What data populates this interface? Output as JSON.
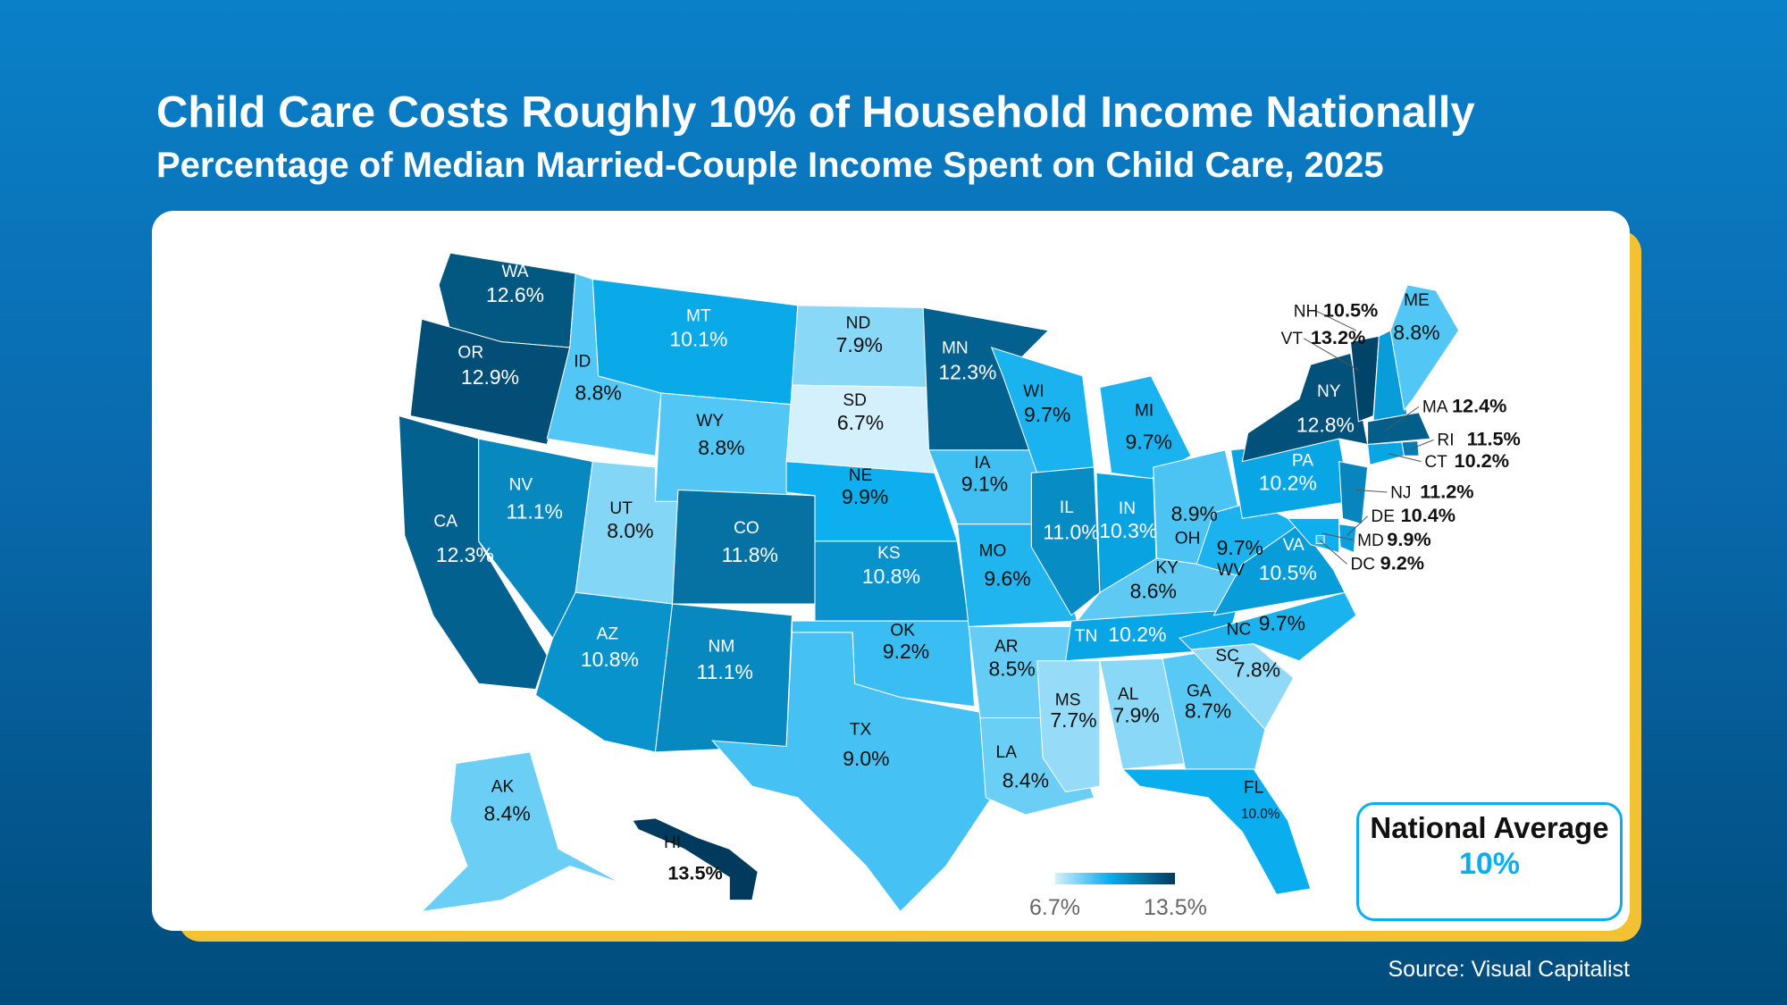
{
  "header": {
    "title": "Child Care Costs Roughly 10% of Household Income Nationally",
    "subtitle": "Percentage of Median Married-Couple Income Spent on Child Care, 2025"
  },
  "national_average": {
    "label": "National Average",
    "value": "10%"
  },
  "source": "Source: Visual Capitalist",
  "colors": {
    "low": "#d4f0fc",
    "mid": "#0aaeef",
    "high": "#003a5d",
    "accent": "#0aaeef",
    "frame": "#f2c232"
  },
  "chart_data": {
    "type": "choropleth",
    "title": "Child Care Costs Roughly 10% of Household Income Nationally",
    "subtitle": "Percentage of Median Married-Couple Income Spent on Child Care, 2025",
    "legend": {
      "min": "6.7%",
      "max": "13.5%",
      "placement": "bottom-center"
    },
    "states": [
      {
        "abbr": "WA",
        "value": 12.6,
        "label": "12.6%"
      },
      {
        "abbr": "OR",
        "value": 12.9,
        "label": "12.9%"
      },
      {
        "abbr": "CA",
        "value": 12.3,
        "label": "12.3%"
      },
      {
        "abbr": "ID",
        "value": 8.8,
        "label": "8.8%"
      },
      {
        "abbr": "NV",
        "value": 11.1,
        "label": "11.1%"
      },
      {
        "abbr": "MT",
        "value": 10.1,
        "label": "10.1%"
      },
      {
        "abbr": "WY",
        "value": 8.8,
        "label": "8.8%"
      },
      {
        "abbr": "UT",
        "value": 8.0,
        "label": "8.0%"
      },
      {
        "abbr": "AZ",
        "value": 10.8,
        "label": "10.8%"
      },
      {
        "abbr": "CO",
        "value": 11.8,
        "label": "11.8%"
      },
      {
        "abbr": "NM",
        "value": 11.1,
        "label": "11.1%"
      },
      {
        "abbr": "ND",
        "value": 7.9,
        "label": "7.9%"
      },
      {
        "abbr": "SD",
        "value": 6.7,
        "label": "6.7%"
      },
      {
        "abbr": "NE",
        "value": 9.9,
        "label": "9.9%"
      },
      {
        "abbr": "KS",
        "value": 10.8,
        "label": "10.8%"
      },
      {
        "abbr": "OK",
        "value": 9.2,
        "label": "9.2%"
      },
      {
        "abbr": "TX",
        "value": 9.0,
        "label": "9.0%"
      },
      {
        "abbr": "MN",
        "value": 12.3,
        "label": "12.3%"
      },
      {
        "abbr": "IA",
        "value": 9.1,
        "label": "9.1%"
      },
      {
        "abbr": "MO",
        "value": 9.6,
        "label": "9.6%"
      },
      {
        "abbr": "AR",
        "value": 8.5,
        "label": "8.5%"
      },
      {
        "abbr": "LA",
        "value": 8.4,
        "label": "8.4%"
      },
      {
        "abbr": "WI",
        "value": 9.7,
        "label": "9.7%"
      },
      {
        "abbr": "IL",
        "value": 11.0,
        "label": "11.0%"
      },
      {
        "abbr": "MI",
        "value": 9.7,
        "label": "9.7%"
      },
      {
        "abbr": "IN",
        "value": 10.3,
        "label": "10.3%"
      },
      {
        "abbr": "OH",
        "value": 8.9,
        "label": "8.9%"
      },
      {
        "abbr": "KY",
        "value": 8.6,
        "label": "8.6%"
      },
      {
        "abbr": "TN",
        "value": 10.2,
        "label": "10.2%"
      },
      {
        "abbr": "MS",
        "value": 7.7,
        "label": "7.7%"
      },
      {
        "abbr": "AL",
        "value": 7.9,
        "label": "7.9%"
      },
      {
        "abbr": "GA",
        "value": 8.7,
        "label": "8.7%"
      },
      {
        "abbr": "FL",
        "value": 10.0,
        "label": "10.0%"
      },
      {
        "abbr": "SC",
        "value": 7.8,
        "label": "7.8%"
      },
      {
        "abbr": "NC",
        "value": 9.7,
        "label": "9.7%"
      },
      {
        "abbr": "VA",
        "value": 10.5,
        "label": "10.5%"
      },
      {
        "abbr": "WV",
        "value": 9.7,
        "label": "9.7%"
      },
      {
        "abbr": "PA",
        "value": 10.2,
        "label": "10.2%"
      },
      {
        "abbr": "NY",
        "value": 12.8,
        "label": "12.8%"
      },
      {
        "abbr": "VT",
        "value": 13.2,
        "label": "13.2%"
      },
      {
        "abbr": "NH",
        "value": 10.5,
        "label": "10.5%"
      },
      {
        "abbr": "ME",
        "value": 8.8,
        "label": "8.8%"
      },
      {
        "abbr": "MA",
        "value": 12.4,
        "label": "12.4%"
      },
      {
        "abbr": "RI",
        "value": 11.5,
        "label": "11.5%"
      },
      {
        "abbr": "CT",
        "value": 10.2,
        "label": "10.2%"
      },
      {
        "abbr": "NJ",
        "value": 11.2,
        "label": "11.2%"
      },
      {
        "abbr": "DE",
        "value": 10.4,
        "label": "10.4%"
      },
      {
        "abbr": "MD",
        "value": 9.9,
        "label": "9.9%"
      },
      {
        "abbr": "DC",
        "value": 9.2,
        "label": "9.2%"
      },
      {
        "abbr": "AK",
        "value": 8.4,
        "label": "8.4%"
      },
      {
        "abbr": "HI",
        "value": 13.5,
        "label": "13.5%"
      }
    ]
  }
}
